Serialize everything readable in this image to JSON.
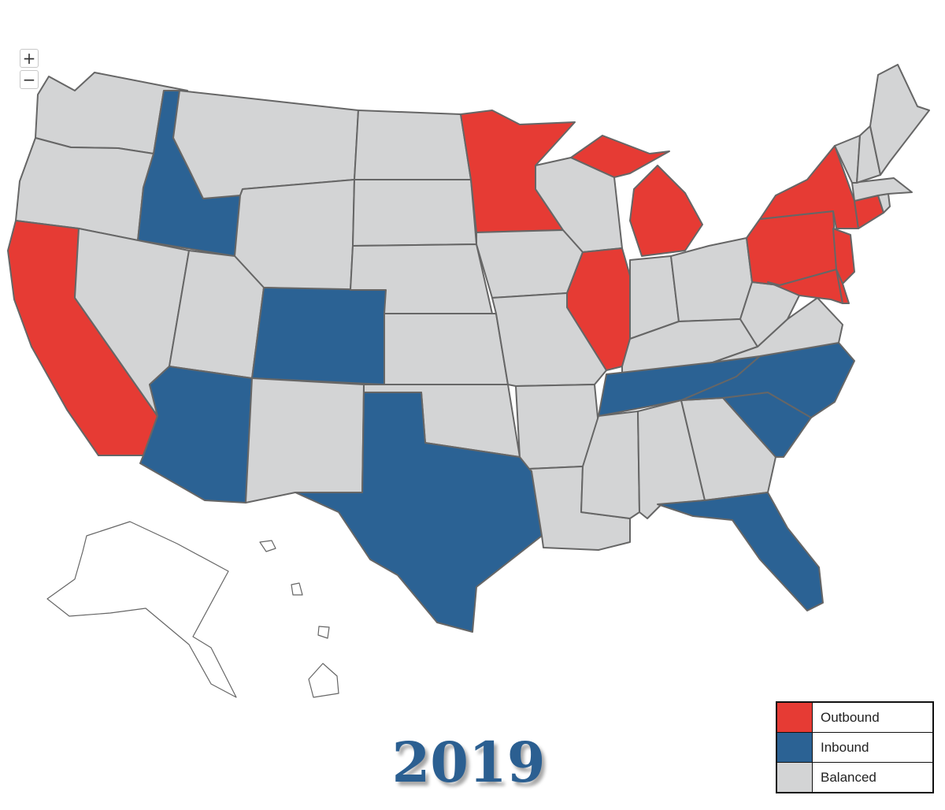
{
  "zoom": {
    "in_label": "+",
    "out_label": "−"
  },
  "title": {
    "year": "2019",
    "color": "#2B5F91"
  },
  "legend": {
    "items": [
      {
        "key": "outbound",
        "label": "Outbound",
        "color": "#E63B34"
      },
      {
        "key": "inbound",
        "label": "Inbound",
        "color": "#2B6294"
      },
      {
        "key": "balanced",
        "label": "Balanced",
        "color": "#D3D4D5"
      }
    ]
  },
  "states": {
    "WA": "balanced",
    "OR": "balanced",
    "CA": "outbound",
    "ID": "inbound",
    "NV": "balanced",
    "MT": "balanced",
    "WY": "balanced",
    "UT": "balanced",
    "AZ": "inbound",
    "CO": "inbound",
    "NM": "balanced",
    "ND": "balanced",
    "SD": "balanced",
    "NE": "balanced",
    "KS": "balanced",
    "OK": "balanced",
    "TX": "inbound",
    "MN": "outbound",
    "IA": "balanced",
    "MO": "balanced",
    "AR": "balanced",
    "LA": "balanced",
    "WI": "balanced",
    "IL": "outbound",
    "MI": "outbound",
    "IN": "balanced",
    "OH": "balanced",
    "KY": "balanced",
    "TN": "inbound",
    "MS": "balanced",
    "AL": "balanced",
    "GA": "balanced",
    "FL": "inbound",
    "SC": "inbound",
    "NC": "inbound",
    "VA": "balanced",
    "WV": "balanced",
    "PA": "outbound",
    "NY": "outbound",
    "NJ": "outbound",
    "MD": "outbound",
    "DE": "outbound",
    "CT": "outbound",
    "RI": "balanced",
    "MA": "balanced",
    "VT": "balanced",
    "NH": "balanced",
    "ME": "balanced",
    "AK": "none",
    "HI": "none"
  }
}
